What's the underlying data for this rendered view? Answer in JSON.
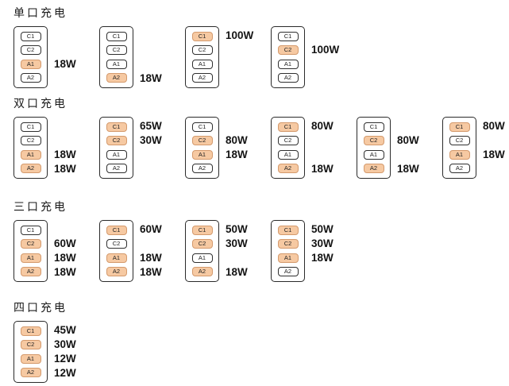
{
  "colors": {
    "active_fill": "#f6c9a2",
    "active_border": "#d49a6d",
    "port_border": "#2f2f2f"
  },
  "sections": [
    {
      "title": "单口充电",
      "devices": [
        {
          "ports": [
            {
              "label": "C1",
              "active": false,
              "watt": ""
            },
            {
              "label": "C2",
              "active": false,
              "watt": ""
            },
            {
              "label": "A1",
              "active": true,
              "watt": "18W"
            },
            {
              "label": "A2",
              "active": false,
              "watt": ""
            }
          ]
        },
        {
          "ports": [
            {
              "label": "C1",
              "active": false,
              "watt": ""
            },
            {
              "label": "C2",
              "active": false,
              "watt": ""
            },
            {
              "label": "A1",
              "active": false,
              "watt": ""
            },
            {
              "label": "A2",
              "active": true,
              "watt": "18W"
            }
          ]
        },
        {
          "ports": [
            {
              "label": "C1",
              "active": true,
              "watt": "100W"
            },
            {
              "label": "C2",
              "active": false,
              "watt": ""
            },
            {
              "label": "A1",
              "active": false,
              "watt": ""
            },
            {
              "label": "A2",
              "active": false,
              "watt": ""
            }
          ]
        },
        {
          "ports": [
            {
              "label": "C1",
              "active": false,
              "watt": ""
            },
            {
              "label": "C2",
              "active": true,
              "watt": "100W"
            },
            {
              "label": "A1",
              "active": false,
              "watt": ""
            },
            {
              "label": "A2",
              "active": false,
              "watt": ""
            }
          ]
        }
      ]
    },
    {
      "title": "双口充电",
      "devices": [
        {
          "ports": [
            {
              "label": "C1",
              "active": false,
              "watt": ""
            },
            {
              "label": "C2",
              "active": false,
              "watt": ""
            },
            {
              "label": "A1",
              "active": true,
              "watt": "18W"
            },
            {
              "label": "A2",
              "active": true,
              "watt": "18W"
            }
          ]
        },
        {
          "ports": [
            {
              "label": "C1",
              "active": true,
              "watt": "65W"
            },
            {
              "label": "C2",
              "active": true,
              "watt": "30W"
            },
            {
              "label": "A1",
              "active": false,
              "watt": ""
            },
            {
              "label": "A2",
              "active": false,
              "watt": ""
            }
          ]
        },
        {
          "ports": [
            {
              "label": "C1",
              "active": false,
              "watt": ""
            },
            {
              "label": "C2",
              "active": true,
              "watt": "80W"
            },
            {
              "label": "A1",
              "active": true,
              "watt": "18W"
            },
            {
              "label": "A2",
              "active": false,
              "watt": ""
            }
          ]
        },
        {
          "ports": [
            {
              "label": "C1",
              "active": true,
              "watt": "80W"
            },
            {
              "label": "C2",
              "active": false,
              "watt": ""
            },
            {
              "label": "A1",
              "active": false,
              "watt": ""
            },
            {
              "label": "A2",
              "active": true,
              "watt": "18W"
            }
          ]
        },
        {
          "ports": [
            {
              "label": "C1",
              "active": false,
              "watt": ""
            },
            {
              "label": "C2",
              "active": true,
              "watt": "80W"
            },
            {
              "label": "A1",
              "active": false,
              "watt": ""
            },
            {
              "label": "A2",
              "active": true,
              "watt": "18W"
            }
          ]
        },
        {
          "ports": [
            {
              "label": "C1",
              "active": true,
              "watt": "80W"
            },
            {
              "label": "C2",
              "active": false,
              "watt": ""
            },
            {
              "label": "A1",
              "active": true,
              "watt": "18W"
            },
            {
              "label": "A2",
              "active": false,
              "watt": ""
            }
          ]
        }
      ]
    },
    {
      "title": "三口充电",
      "devices": [
        {
          "ports": [
            {
              "label": "C1",
              "active": false,
              "watt": ""
            },
            {
              "label": "C2",
              "active": true,
              "watt": "60W"
            },
            {
              "label": "A1",
              "active": true,
              "watt": "18W"
            },
            {
              "label": "A2",
              "active": true,
              "watt": "18W"
            }
          ]
        },
        {
          "ports": [
            {
              "label": "C1",
              "active": true,
              "watt": "60W"
            },
            {
              "label": "C2",
              "active": false,
              "watt": ""
            },
            {
              "label": "A1",
              "active": true,
              "watt": "18W"
            },
            {
              "label": "A2",
              "active": true,
              "watt": "18W"
            }
          ]
        },
        {
          "ports": [
            {
              "label": "C1",
              "active": true,
              "watt": "50W"
            },
            {
              "label": "C2",
              "active": true,
              "watt": "30W"
            },
            {
              "label": "A1",
              "active": false,
              "watt": ""
            },
            {
              "label": "A2",
              "active": true,
              "watt": "18W"
            }
          ]
        },
        {
          "ports": [
            {
              "label": "C1",
              "active": true,
              "watt": "50W"
            },
            {
              "label": "C2",
              "active": true,
              "watt": "30W"
            },
            {
              "label": "A1",
              "active": true,
              "watt": "18W"
            },
            {
              "label": "A2",
              "active": false,
              "watt": ""
            }
          ]
        }
      ]
    },
    {
      "title": "四口充电",
      "devices": [
        {
          "ports": [
            {
              "label": "C1",
              "active": true,
              "watt": "45W"
            },
            {
              "label": "C2",
              "active": true,
              "watt": "30W"
            },
            {
              "label": "A1",
              "active": true,
              "watt": "12W"
            },
            {
              "label": "A2",
              "active": true,
              "watt": "12W"
            }
          ]
        }
      ]
    }
  ]
}
